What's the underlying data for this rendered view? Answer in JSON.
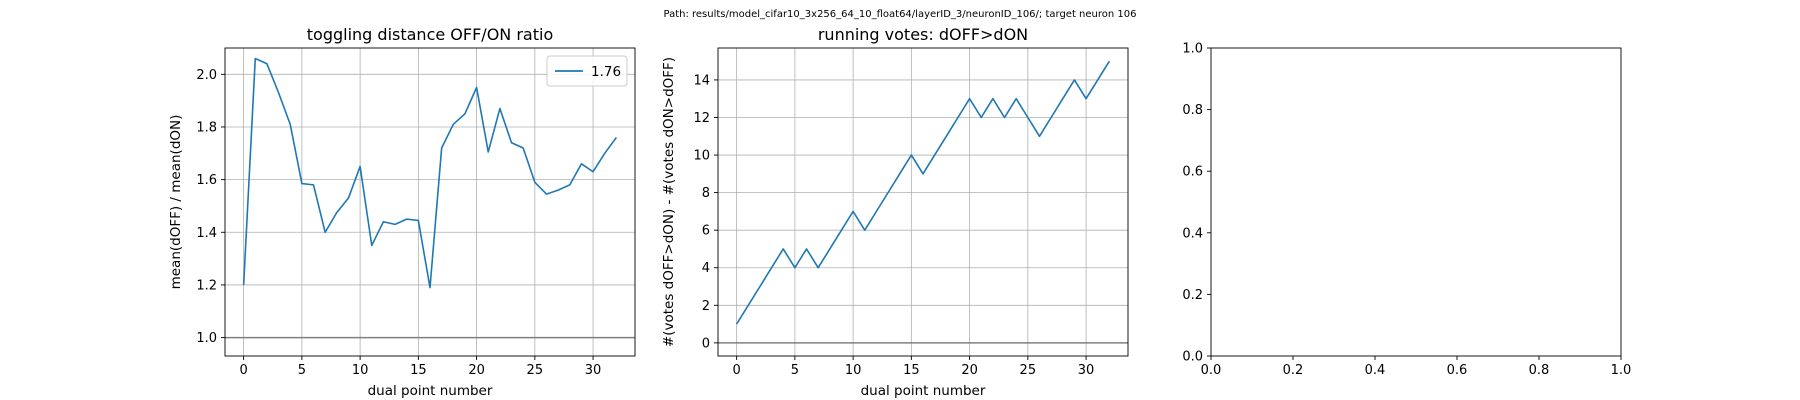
{
  "suptitle": "Path: results/model_cifar10_3x256_64_10_float64/layerID_3/neuronID_106/; target neuron 106",
  "colors": {
    "line": "#1f77b4",
    "grid": "#b0b0b0",
    "refline": "#808080",
    "axis": "#000000"
  },
  "chart_data": [
    {
      "type": "line",
      "title": "toggling distance OFF/ON ratio",
      "xlabel": "dual point number",
      "ylabel": "mean(dOFF) / mean(dON)",
      "xlim": [
        -1.6,
        33.6
      ],
      "ylim": [
        0.93,
        2.1
      ],
      "xticks": [
        0,
        5,
        10,
        15,
        20,
        25,
        30
      ],
      "yticks": [
        1.0,
        1.2,
        1.4,
        1.6,
        1.8,
        2.0
      ],
      "ytick_labels": [
        "1.0",
        "1.2",
        "1.4",
        "1.6",
        "1.8",
        "2.0"
      ],
      "grid": true,
      "hline": 1.0,
      "legend": {
        "position": "top-right",
        "entries": [
          "1.76"
        ]
      },
      "series": [
        {
          "name": "1.76",
          "x": [
            0,
            1,
            2,
            3,
            4,
            5,
            6,
            7,
            8,
            9,
            10,
            11,
            12,
            13,
            14,
            15,
            16,
            17,
            18,
            19,
            20,
            21,
            22,
            23,
            24,
            25,
            26,
            27,
            28,
            29,
            30,
            31,
            32
          ],
          "y": [
            1.2,
            2.06,
            2.04,
            1.93,
            1.81,
            1.585,
            1.58,
            1.4,
            1.475,
            1.53,
            1.65,
            1.35,
            1.44,
            1.43,
            1.45,
            1.445,
            1.19,
            1.72,
            1.81,
            1.85,
            1.95,
            1.705,
            1.87,
            1.74,
            1.72,
            1.59,
            1.545,
            1.56,
            1.58,
            1.66,
            1.63,
            1.7,
            1.76
          ]
        }
      ]
    },
    {
      "type": "line",
      "title": "running votes: dOFF>dON",
      "xlabel": "dual point number",
      "ylabel": "#(votes dOFF>dON) - #(votes dON>dOFF)",
      "xlim": [
        -1.6,
        33.6
      ],
      "ylim": [
        -0.7,
        15.7
      ],
      "xticks": [
        0,
        5,
        10,
        15,
        20,
        25,
        30
      ],
      "yticks": [
        0,
        2,
        4,
        6,
        8,
        10,
        12,
        14
      ],
      "ytick_labels": [
        "0",
        "2",
        "4",
        "6",
        "8",
        "10",
        "12",
        "14"
      ],
      "grid": true,
      "hline": 0,
      "series": [
        {
          "name": "",
          "x": [
            0,
            1,
            2,
            3,
            4,
            5,
            6,
            7,
            8,
            9,
            10,
            11,
            12,
            13,
            14,
            15,
            16,
            17,
            18,
            19,
            20,
            21,
            22,
            23,
            24,
            25,
            26,
            27,
            28,
            29,
            30,
            31,
            32
          ],
          "y": [
            1,
            2,
            3,
            4,
            5,
            4,
            5,
            4,
            5,
            6,
            7,
            6,
            7,
            8,
            9,
            10,
            9,
            10,
            11,
            12,
            13,
            12,
            13,
            12,
            13,
            12,
            11,
            12,
            13,
            14,
            13,
            14,
            15
          ]
        }
      ]
    },
    {
      "type": "line",
      "title": "",
      "xlabel": "",
      "ylabel": "",
      "xlim": [
        0,
        1
      ],
      "ylim": [
        0,
        1
      ],
      "xticks": [
        0,
        0.2,
        0.4,
        0.6,
        0.8,
        1.0
      ],
      "xtick_labels": [
        "0.0",
        "0.2",
        "0.4",
        "0.6",
        "0.8",
        "1.0"
      ],
      "yticks": [
        0,
        0.2,
        0.4,
        0.6,
        0.8,
        1.0
      ],
      "ytick_labels": [
        "0.0",
        "0.2",
        "0.4",
        "0.6",
        "0.8",
        "1.0"
      ],
      "grid": false,
      "series": []
    }
  ]
}
